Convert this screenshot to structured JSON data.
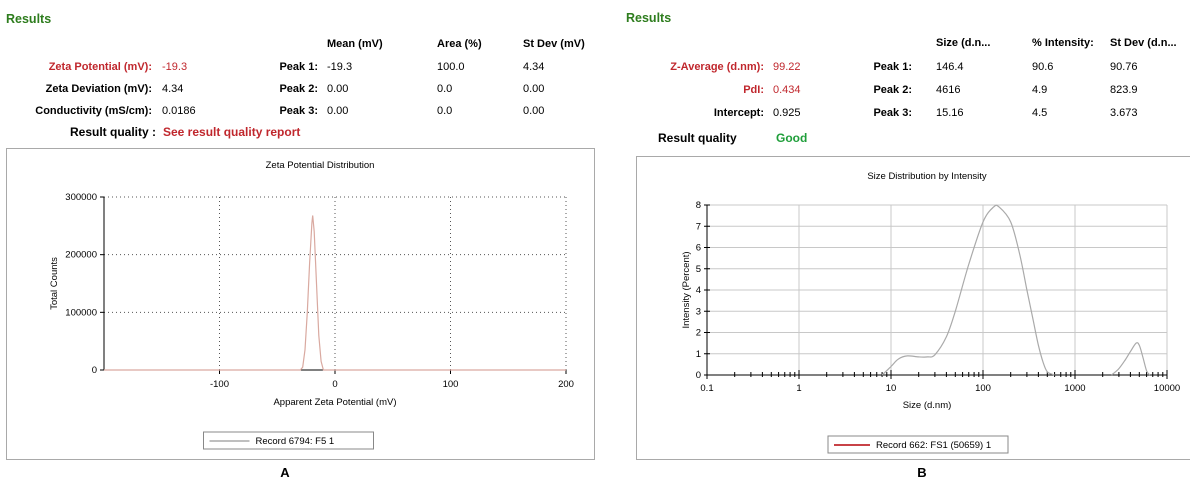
{
  "panel_a": {
    "results_title": "Results",
    "table": {
      "headers": [
        "Mean (mV)",
        "Area (%)",
        "St Dev (mV)"
      ],
      "left_rows": [
        {
          "label": "Zeta Potential (mV):",
          "value": "-19.3"
        },
        {
          "label": "Zeta Deviation (mV):",
          "value": "4.34"
        },
        {
          "label": "Conductivity (mS/cm):",
          "value": "0.0186"
        }
      ],
      "peaks": [
        {
          "label": "Peak 1:",
          "mean": "-19.3",
          "area": "100.0",
          "stdev": "4.34"
        },
        {
          "label": "Peak 2:",
          "mean": "0.00",
          "area": "0.0",
          "stdev": "0.00"
        },
        {
          "label": "Peak 3:",
          "mean": "0.00",
          "area": "0.0",
          "stdev": "0.00"
        }
      ]
    },
    "quality_label": "Result quality :",
    "quality_value": "See result quality report",
    "panel_letter": "A"
  },
  "panel_b": {
    "results_title": "Results",
    "table": {
      "headers": [
        "Size (d.n...",
        "% Intensity:",
        "St Dev (d.n..."
      ],
      "left_rows": [
        {
          "label": "Z-Average (d.nm):",
          "value": "99.22"
        },
        {
          "label": "PdI:",
          "value": "0.434"
        },
        {
          "label": "Intercept:",
          "value": "0.925"
        }
      ],
      "peaks": [
        {
          "label": "Peak 1:",
          "size": "146.4",
          "intensity": "90.6",
          "stdev": "90.76"
        },
        {
          "label": "Peak 2:",
          "size": "4616",
          "intensity": "4.9",
          "stdev": "823.9"
        },
        {
          "label": "Peak 3:",
          "size": "15.16",
          "intensity": "4.5",
          "stdev": "3.673"
        }
      ]
    },
    "quality_label": "Result quality",
    "quality_value": "Good",
    "panel_letter": "B"
  },
  "colors": {
    "results_title": "#2e7d1e",
    "highlight_red": "#c0272d",
    "good_green": "#1f9e3a",
    "zeta_line": "#d9a9a0",
    "size_line": "#aaaaaa",
    "legend_line_b": "#c0272d",
    "legend_line_a": "#aaaaaa"
  },
  "chart_data": [
    {
      "type": "line",
      "title": "Zeta Potential Distribution",
      "xlabel": "Apparent Zeta Potential (mV)",
      "ylabel": "Total Counts",
      "xlim": [
        -200,
        200
      ],
      "ylim": [
        0,
        300000
      ],
      "xticks": [
        -100,
        0,
        100,
        200
      ],
      "yticks": [
        0,
        100000,
        200000,
        300000
      ],
      "grid": "dotted",
      "legend": "Record 6794: F5 1",
      "legend_position": "bottom",
      "series": [
        {
          "name": "Record 6794: F5 1",
          "x": [
            -200,
            -30,
            -28,
            -26,
            -24,
            -22,
            -20,
            -19.3,
            -18,
            -16,
            -14,
            -12,
            -10,
            200
          ],
          "y": [
            0,
            0,
            5000,
            35000,
            100000,
            185000,
            255000,
            268000,
            240000,
            150000,
            60000,
            15000,
            0,
            0
          ]
        }
      ]
    },
    {
      "type": "line",
      "title": "Size Distribution by Intensity",
      "xlabel": "Size (d.nm)",
      "ylabel": "Intensity (Percent)",
      "xscale": "log",
      "xlim": [
        0.1,
        10000
      ],
      "ylim": [
        0,
        8
      ],
      "xticks": [
        0.1,
        1,
        10,
        100,
        1000,
        10000
      ],
      "yticks": [
        0,
        1,
        2,
        3,
        4,
        5,
        6,
        7,
        8
      ],
      "grid": "solid",
      "legend": "Record 662: FS1  (50659) 1",
      "legend_position": "bottom",
      "series": [
        {
          "name": "Record 662: FS1  (50659) 1",
          "x": [
            8,
            10,
            12,
            15,
            20,
            25,
            30,
            40,
            50,
            70,
            100,
            130,
            150,
            200,
            250,
            300,
            350,
            400,
            450,
            500,
            600
          ],
          "y": [
            0,
            0.4,
            0.75,
            0.9,
            0.85,
            0.85,
            0.95,
            1.8,
            3.0,
            5.2,
            7.2,
            7.9,
            7.9,
            7.2,
            5.7,
            4.0,
            2.6,
            1.4,
            0.6,
            0.15,
            0
          ]
        },
        {
          "name": "Record 662: FS1  (50659) 1",
          "x": [
            2500,
            3000,
            3500,
            4000,
            4616,
            5000,
            5500,
            6000,
            6500
          ],
          "y": [
            0,
            0.3,
            0.7,
            1.1,
            1.5,
            1.4,
            0.8,
            0.2,
            0
          ]
        }
      ]
    }
  ]
}
